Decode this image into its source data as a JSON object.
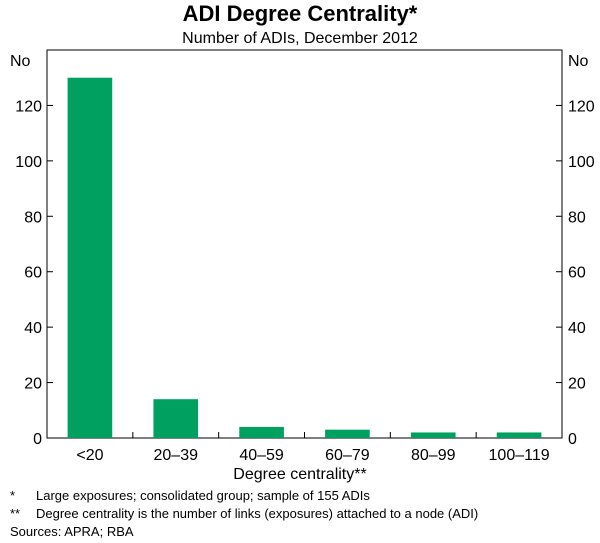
{
  "chart_data": {
    "type": "bar",
    "title": "ADI Degree Centrality*",
    "subtitle": "Number of ADIs, December 2012",
    "xlabel": "Degree centrality**",
    "ylabel_left": "No",
    "ylabel_right": "No",
    "categories": [
      "<20",
      "20–39",
      "40–59",
      "60–79",
      "80–99",
      "100–119"
    ],
    "values": [
      130,
      14,
      4,
      3,
      2,
      2
    ],
    "ylim": [
      0,
      140
    ],
    "yticks": [
      0,
      20,
      40,
      60,
      80,
      100,
      120
    ],
    "bar_color": "#00a060",
    "grid": false
  },
  "footnotes": [
    {
      "mark": "*",
      "text": "Large exposures; consolidated group; sample of 155 ADIs"
    },
    {
      "mark": "**",
      "text": "Degree centrality is the number of links (exposures) attached to a node (ADI)"
    }
  ],
  "sources": "Sources: APRA; RBA"
}
